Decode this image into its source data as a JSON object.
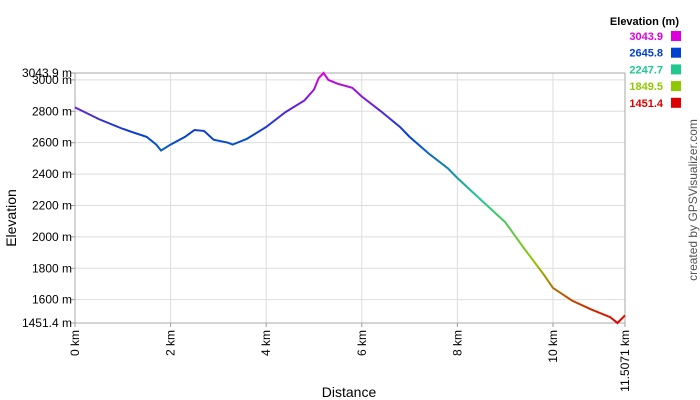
{
  "chart_data": {
    "type": "line",
    "x_label": "Distance",
    "y_label": "Elevation",
    "credit": "created by GPSVisualizer.com",
    "x": [
      0,
      0.5,
      1.0,
      1.5,
      1.7,
      1.8,
      2.0,
      2.3,
      2.5,
      2.7,
      2.9,
      3.2,
      3.3,
      3.6,
      4.0,
      4.4,
      4.8,
      5.0,
      5.1,
      5.2,
      5.3,
      5.5,
      5.8,
      6.0,
      6.4,
      6.8,
      7.0,
      7.4,
      7.8,
      8.0,
      8.4,
      8.8,
      9.0,
      9.4,
      9.8,
      10.0,
      10.4,
      10.8,
      11.2,
      11.35,
      11.5071
    ],
    "values": [
      2825,
      2750,
      2688,
      2637,
      2588,
      2550,
      2588,
      2637,
      2681,
      2675,
      2619,
      2600,
      2588,
      2625,
      2700,
      2794,
      2869,
      2938,
      3012,
      3043.9,
      3000,
      2975,
      2950,
      2894,
      2800,
      2700,
      2637,
      2531,
      2437,
      2375,
      2262,
      2150,
      2094,
      1925,
      1763,
      1675,
      1594,
      1538,
      1488,
      1451.4,
      1500
    ],
    "xlim": [
      0,
      11.5071
    ],
    "ylim": [
      1451.4,
      3043.9
    ],
    "xticks": [
      {
        "value": 0,
        "label": "0 km"
      },
      {
        "value": 2,
        "label": "2 km"
      },
      {
        "value": 4,
        "label": "4 km"
      },
      {
        "value": 6,
        "label": "6 km"
      },
      {
        "value": 8,
        "label": "8 km"
      },
      {
        "value": 10,
        "label": "10 km"
      },
      {
        "value": 11.5071,
        "label": "11.5071 km"
      }
    ],
    "yticks": [
      {
        "value": 1451.4,
        "label": "1451.4 m"
      },
      {
        "value": 1600,
        "label": "1600 m"
      },
      {
        "value": 1800,
        "label": "1800 m"
      },
      {
        "value": 2000,
        "label": "2000 m"
      },
      {
        "value": 2200,
        "label": "2200 m"
      },
      {
        "value": 2400,
        "label": "2400 m"
      },
      {
        "value": 2600,
        "label": "2600 m"
      },
      {
        "value": 2800,
        "label": "2800 m"
      },
      {
        "value": 3000,
        "label": "3000 m"
      },
      {
        "value": 3043.9,
        "label": "3043.9 m"
      }
    ],
    "grid": true,
    "legend": {
      "title": "Elevation (m)",
      "entries": [
        {
          "value": 3043.9,
          "color": "#dd00dd"
        },
        {
          "value": 2645.8,
          "color": "#0040d0"
        },
        {
          "value": 2247.7,
          "color": "#20c890"
        },
        {
          "value": 1849.5,
          "color": "#90c800"
        },
        {
          "value": 1451.4,
          "color": "#dd0000"
        }
      ]
    }
  }
}
